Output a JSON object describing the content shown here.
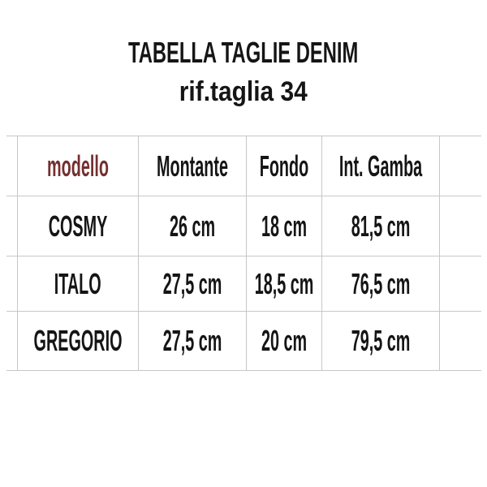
{
  "colors": {
    "accent": "#742f2f",
    "text": "#151515",
    "grid": "#c7c7c7",
    "background": "#ffffff"
  },
  "header": {
    "title": "TABELLA TAGLIE DENIM",
    "subtitle": "rif.taglia 34"
  },
  "table": {
    "header": {
      "model": "modello",
      "cols": [
        "Montante",
        "Fondo",
        "Int. Gamba"
      ]
    },
    "rows": [
      {
        "model": "COSMY",
        "values": [
          "26 cm",
          "18 cm",
          "81,5 cm"
        ]
      },
      {
        "model": "ITALO",
        "values": [
          "27,5 cm",
          "18,5 cm",
          "76,5 cm"
        ]
      },
      {
        "model": "GREGORIO",
        "values": [
          "27,5 cm",
          "20 cm",
          "79,5 cm"
        ]
      }
    ]
  }
}
